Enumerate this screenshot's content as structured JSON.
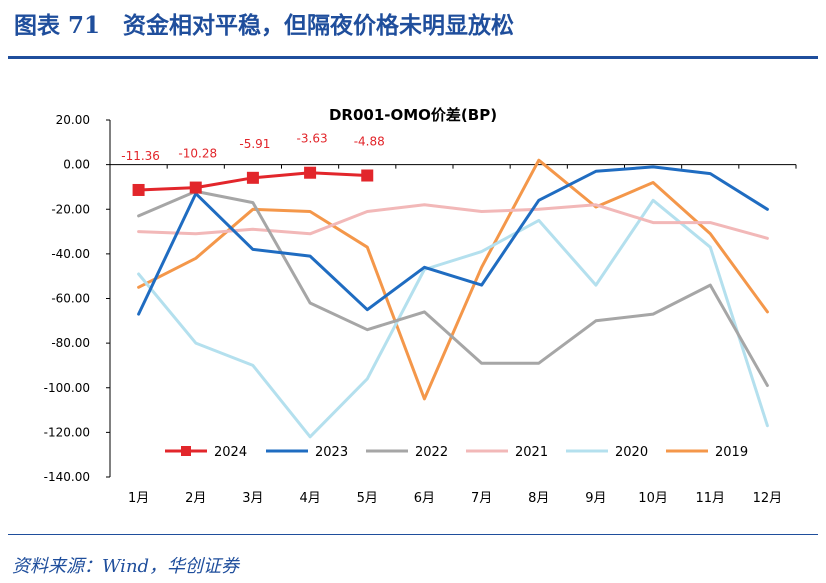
{
  "header": {
    "title": "图表 71　资金相对平稳，但隔夜价格未明显放松"
  },
  "footer": {
    "source": "资料来源：Wind，华创证券"
  },
  "chart_data": {
    "type": "line",
    "title": "DR001-OMO价差(BP)",
    "xlabel": "",
    "ylabel": "",
    "categories": [
      "1月",
      "2月",
      "3月",
      "4月",
      "5月",
      "6月",
      "7月",
      "8月",
      "9月",
      "10月",
      "11月",
      "12月"
    ],
    "ylim": [
      -140,
      20
    ],
    "y_ticks": [
      "20.00",
      "0.00",
      "-20.00",
      "-40.00",
      "-60.00",
      "-80.00",
      "-100.00",
      "-120.00",
      "-140.00"
    ],
    "legend_position": "bottom",
    "series": [
      {
        "name": "2024",
        "color": "#e2262b",
        "markers": true,
        "data_labels": [
          "-11.36",
          "-10.28",
          "-5.91",
          "-3.63",
          "-4.88"
        ],
        "values": [
          -11.36,
          -10.28,
          -5.91,
          -3.63,
          -4.88,
          null,
          null,
          null,
          null,
          null,
          null,
          null
        ]
      },
      {
        "name": "2023",
        "color": "#1f6cc1",
        "values": [
          -67,
          -13,
          -38,
          -41,
          -65,
          -46,
          -54,
          -16,
          -3,
          -1,
          -4,
          -20
        ]
      },
      {
        "name": "2022",
        "color": "#a6a6a6",
        "values": [
          -23,
          -12,
          -17,
          -62,
          -74,
          -66,
          -89,
          -89,
          -70,
          -67,
          -54,
          -99
        ]
      },
      {
        "name": "2021",
        "color": "#f2b8b8",
        "values": [
          -30,
          -31,
          -29,
          -31,
          -21,
          -18,
          -21,
          -20,
          -18,
          -26,
          -26,
          -33
        ]
      },
      {
        "name": "2020",
        "color": "#b4e0ee",
        "values": [
          -49,
          -80,
          -90,
          -122,
          -96,
          -47,
          -39,
          -25,
          -54,
          -16,
          -37,
          -117
        ]
      },
      {
        "name": "2019",
        "color": "#f4974a",
        "values": [
          -55,
          -42,
          -20,
          -21,
          -37,
          -105,
          -46,
          2,
          -19,
          -8,
          -31,
          -66
        ]
      }
    ]
  }
}
